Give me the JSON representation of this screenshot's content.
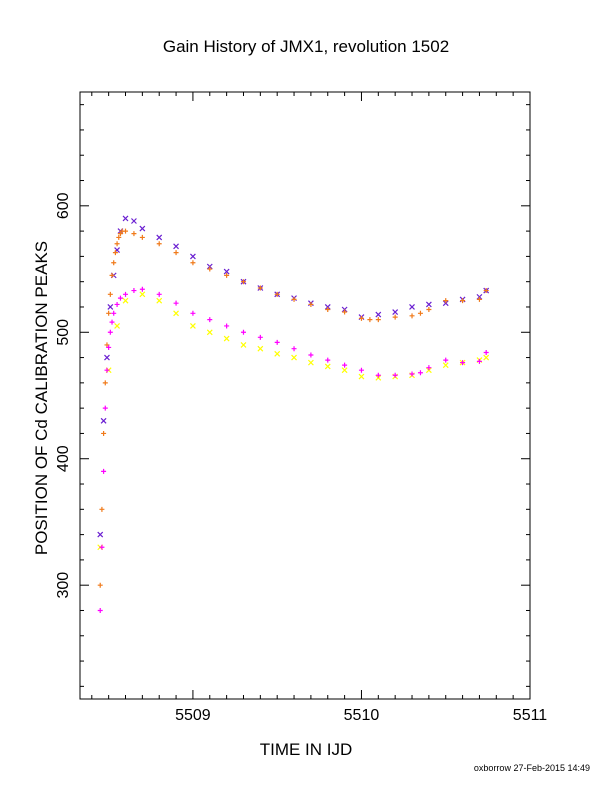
{
  "chart_data": {
    "type": "scatter",
    "title": "Gain History of JMX1, revolution 1502",
    "xlabel": "TIME IN IJD",
    "ylabel": "POSITION OF Cd CALIBRATION PEAKS",
    "xlim": [
      5508.33,
      5511.0
    ],
    "ylim": [
      210,
      690
    ],
    "x_ticks": [
      5509,
      5510,
      5511
    ],
    "x_tick_labels": [
      "5509",
      "5510",
      "5511"
    ],
    "y_ticks": [
      300,
      400,
      500,
      600
    ],
    "y_tick_labels": [
      "300",
      "400",
      "500",
      "600"
    ],
    "grid": false,
    "legend": "none",
    "series": [
      {
        "marker": "x",
        "color": "#6a1fd1",
        "x": [
          5508.45,
          5508.47,
          5508.49,
          5508.51,
          5508.53,
          5508.55,
          5508.57,
          5508.6,
          5508.65,
          5508.7,
          5508.8,
          5508.9,
          5509.0,
          5509.1,
          5509.2,
          5509.3,
          5509.4,
          5509.5,
          5509.6,
          5509.7,
          5509.8,
          5509.9,
          5510.0,
          5510.1,
          5510.2,
          5510.3,
          5510.4,
          5510.5,
          5510.6,
          5510.7,
          5510.74
        ],
        "y": [
          340,
          430,
          480,
          520,
          545,
          565,
          580,
          590,
          588,
          582,
          575,
          568,
          560,
          552,
          548,
          540,
          535,
          530,
          527,
          523,
          520,
          518,
          512,
          514,
          516,
          520,
          522,
          523,
          526,
          528,
          533
        ]
      },
      {
        "marker": "+",
        "color": "#f07a1a",
        "x": [
          5508.45,
          5508.46,
          5508.47,
          5508.48,
          5508.49,
          5508.5,
          5508.51,
          5508.52,
          5508.53,
          5508.54,
          5508.55,
          5508.56,
          5508.57,
          5508.58,
          5508.6,
          5508.65,
          5508.7,
          5508.8,
          5508.9,
          5509.0,
          5509.1,
          5509.2,
          5509.3,
          5509.4,
          5509.5,
          5509.6,
          5509.7,
          5509.8,
          5509.9,
          5510.0,
          5510.05,
          5510.1,
          5510.2,
          5510.3,
          5510.35,
          5510.4,
          5510.5,
          5510.6,
          5510.7,
          5510.74
        ],
        "y": [
          300,
          360,
          420,
          460,
          490,
          515,
          530,
          545,
          555,
          563,
          570,
          575,
          578,
          580,
          580,
          578,
          575,
          570,
          563,
          555,
          550,
          545,
          540,
          535,
          530,
          526,
          522,
          518,
          516,
          511,
          510,
          510,
          512,
          513,
          515,
          518,
          525,
          525,
          526,
          533
        ]
      },
      {
        "marker": "x",
        "color": "#ffff00",
        "x": [
          5508.45,
          5508.5,
          5508.55,
          5508.6,
          5508.7,
          5508.8,
          5508.9,
          5509.0,
          5509.1,
          5509.2,
          5509.3,
          5509.4,
          5509.5,
          5509.6,
          5509.7,
          5509.8,
          5509.9,
          5510.0,
          5510.1,
          5510.2,
          5510.3,
          5510.4,
          5510.5,
          5510.6,
          5510.7,
          5510.74
        ],
        "y": [
          330,
          470,
          505,
          525,
          530,
          525,
          515,
          505,
          500,
          495,
          490,
          487,
          483,
          480,
          476,
          473,
          470,
          465,
          464,
          465,
          466,
          470,
          474,
          476,
          478,
          480
        ]
      },
      {
        "marker": "+",
        "color": "#ff00ff",
        "x": [
          5508.45,
          5508.46,
          5508.47,
          5508.48,
          5508.49,
          5508.5,
          5508.51,
          5508.52,
          5508.53,
          5508.55,
          5508.57,
          5508.6,
          5508.65,
          5508.7,
          5508.8,
          5508.9,
          5509.0,
          5509.1,
          5509.2,
          5509.3,
          5509.4,
          5509.5,
          5509.6,
          5509.7,
          5509.8,
          5509.9,
          5510.0,
          5510.1,
          5510.2,
          5510.3,
          5510.35,
          5510.4,
          5510.5,
          5510.6,
          5510.7,
          5510.74
        ],
        "y": [
          280,
          330,
          390,
          440,
          470,
          488,
          500,
          508,
          515,
          522,
          527,
          530,
          533,
          534,
          530,
          523,
          515,
          510,
          505,
          500,
          496,
          492,
          487,
          482,
          478,
          474,
          470,
          466,
          466,
          467,
          468,
          472,
          478,
          476,
          477,
          484
        ]
      }
    ]
  },
  "footer": {
    "credit": "oxborrow 27-Feb-2015 14:49"
  }
}
